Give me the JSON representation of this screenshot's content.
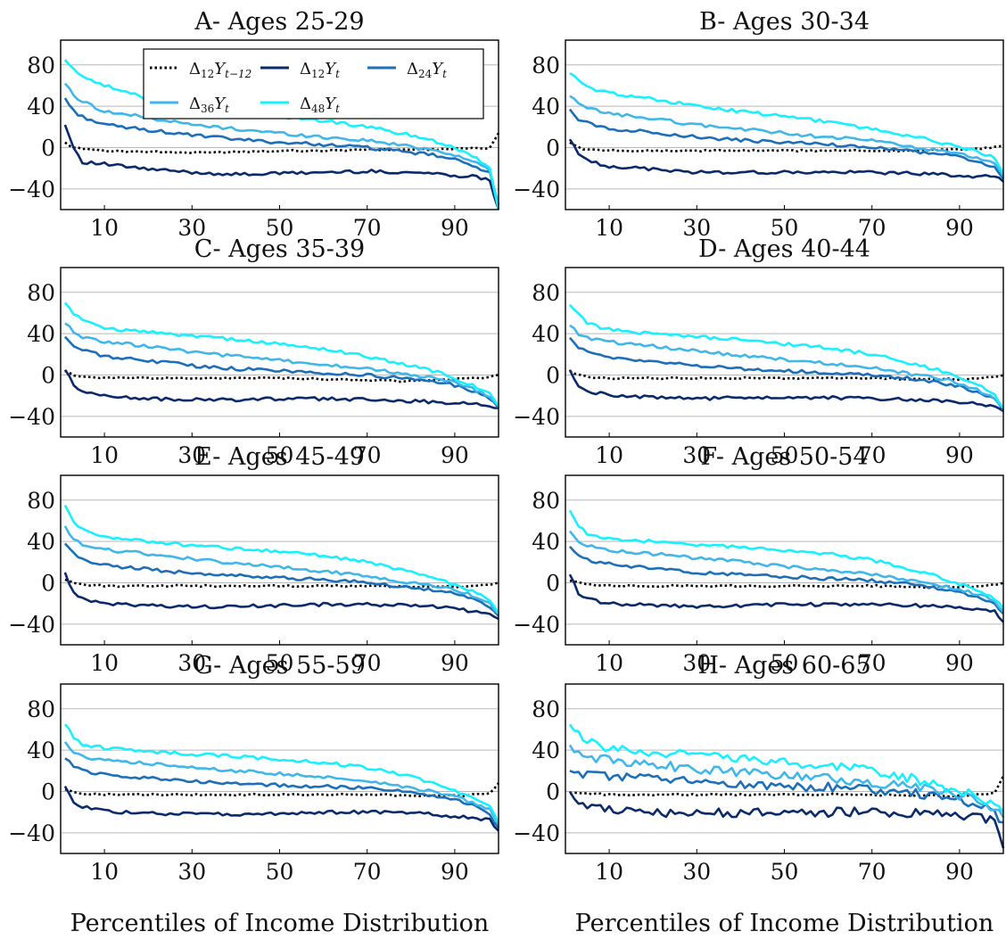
{
  "chart_data": {
    "type": "line",
    "x_ticks": [
      10,
      30,
      50,
      70,
      90
    ],
    "y_ticks": [
      -40,
      0,
      40,
      80
    ],
    "xlim": [
      0,
      100
    ],
    "ylim": [
      -60,
      104
    ],
    "grid": "horizontal",
    "legend": {
      "placement": "top (panel A)",
      "entries": [
        {
          "series": "d12lag",
          "label": "Δ12Yt−12",
          "base": "Δ",
          "sub": "12",
          "var": "Y",
          "var_sub": "t−12"
        },
        {
          "series": "d12",
          "label": "Δ12Yt",
          "base": "Δ",
          "sub": "12",
          "var": "Y",
          "var_sub": "t"
        },
        {
          "series": "d24",
          "label": "Δ24Yt",
          "base": "Δ",
          "sub": "24",
          "var": "Y",
          "var_sub": "t"
        },
        {
          "series": "d36",
          "label": "Δ36Yt",
          "base": "Δ",
          "sub": "36",
          "var": "Y",
          "var_sub": "t"
        },
        {
          "series": "d48",
          "label": "Δ48Yt",
          "base": "Δ",
          "sub": "48",
          "var": "Y",
          "var_sub": "t"
        }
      ]
    },
    "series_styles": {
      "d12lag": {
        "color": "#000000",
        "dashed": true
      },
      "d12": {
        "color": "#0b2a6b",
        "dashed": false
      },
      "d24": {
        "color": "#1c6fb8",
        "dashed": false
      },
      "d36": {
        "color": "#3fb7ea",
        "dashed": false
      },
      "d48": {
        "color": "#18f0ff",
        "dashed": false
      }
    },
    "x": [
      1,
      3,
      5,
      10,
      20,
      30,
      40,
      50,
      60,
      70,
      80,
      85,
      90,
      95,
      98,
      100
    ],
    "xlabel": "Percentiles of Income Distribution",
    "panels": [
      {
        "id": "A",
        "title": "A- Ages 25-29",
        "series": {
          "d48": [
            85,
            75,
            70,
            60,
            47,
            40,
            35,
            30,
            26,
            20,
            12,
            7,
            0,
            -10,
            -20,
            -60
          ],
          "d36": [
            62,
            50,
            45,
            35,
            29,
            22,
            18,
            14,
            10,
            7,
            1,
            -2,
            -7,
            -15,
            -22,
            -56
          ],
          "d24": [
            48,
            35,
            30,
            22,
            17,
            12,
            8,
            5,
            3,
            0,
            -5,
            -7,
            -12,
            -18,
            -25,
            -55
          ],
          "d12": [
            22,
            0,
            -14,
            -16,
            -21,
            -24,
            -26,
            -25,
            -24,
            -23,
            -24,
            -25,
            -27,
            -28,
            -32,
            -60
          ],
          "d12lag": [
            5,
            0,
            -1,
            -3,
            -4,
            -5,
            -4,
            -3,
            -3,
            -2,
            -2,
            -2,
            -1,
            -1,
            0,
            14
          ]
        }
      },
      {
        "id": "B",
        "title": "B- Ages 30-34",
        "series": {
          "d48": [
            72,
            65,
            58,
            53,
            47,
            40,
            35,
            30,
            25,
            18,
            10,
            6,
            0,
            -5,
            -10,
            -25
          ],
          "d36": [
            50,
            42,
            38,
            33,
            28,
            22,
            18,
            14,
            10,
            7,
            0,
            -3,
            -6,
            -12,
            -16,
            -28
          ],
          "d24": [
            37,
            27,
            24,
            18,
            15,
            10,
            7,
            5,
            3,
            0,
            -4,
            -6,
            -9,
            -15,
            -19,
            -30
          ],
          "d12": [
            8,
            -5,
            -13,
            -18,
            -21,
            -24,
            -24,
            -24,
            -24,
            -24,
            -25,
            -26,
            -27,
            -28,
            -28,
            -33
          ],
          "d12lag": [
            5,
            0,
            -2,
            -3,
            -3,
            -3,
            -3,
            -3,
            -3,
            -3,
            -3,
            -2,
            -2,
            -1,
            0,
            2
          ]
        }
      },
      {
        "id": "C",
        "title": "C- Ages 35-39",
        "series": {
          "d48": [
            70,
            60,
            52,
            45,
            42,
            38,
            34,
            30,
            25,
            18,
            9,
            4,
            -3,
            -12,
            -18,
            -30
          ],
          "d36": [
            50,
            42,
            37,
            32,
            28,
            22,
            18,
            14,
            10,
            6,
            0,
            -3,
            -7,
            -15,
            -20,
            -30
          ],
          "d24": [
            37,
            28,
            24,
            18,
            14,
            9,
            6,
            4,
            2,
            0,
            -4,
            -6,
            -10,
            -17,
            -22,
            -32
          ],
          "d12": [
            5,
            -10,
            -16,
            -20,
            -23,
            -24,
            -24,
            -23,
            -23,
            -24,
            -25,
            -26,
            -27,
            -28,
            -29,
            -32
          ],
          "d12lag": [
            4,
            0,
            -2,
            -3,
            -3,
            -3,
            -3,
            -3,
            -4,
            -5,
            -6,
            -5,
            -4,
            -3,
            -2,
            0
          ]
        }
      },
      {
        "id": "D",
        "title": "D- Ages 40-44",
        "series": {
          "d48": [
            68,
            58,
            50,
            44,
            40,
            37,
            34,
            30,
            26,
            20,
            10,
            5,
            -3,
            -12,
            -20,
            -32
          ],
          "d36": [
            48,
            40,
            36,
            32,
            28,
            23,
            19,
            15,
            11,
            7,
            0,
            -3,
            -8,
            -16,
            -22,
            -32
          ],
          "d24": [
            36,
            27,
            22,
            17,
            13,
            9,
            6,
            4,
            2,
            0,
            -4,
            -7,
            -11,
            -18,
            -24,
            -34
          ],
          "d12": [
            5,
            -10,
            -16,
            -19,
            -22,
            -23,
            -22,
            -22,
            -22,
            -23,
            -24,
            -25,
            -26,
            -28,
            -30,
            -35
          ],
          "d12lag": [
            4,
            0,
            -2,
            -3,
            -3,
            -3,
            -3,
            -3,
            -3,
            -3,
            -4,
            -4,
            -4,
            -3,
            -2,
            0
          ]
        }
      },
      {
        "id": "E",
        "title": "E- Ages 45-49",
        "series": {
          "d48": [
            75,
            60,
            52,
            44,
            40,
            36,
            33,
            30,
            26,
            20,
            10,
            5,
            -2,
            -10,
            -18,
            -30
          ],
          "d36": [
            55,
            42,
            36,
            32,
            28,
            23,
            19,
            15,
            11,
            7,
            0,
            -3,
            -7,
            -14,
            -20,
            -30
          ],
          "d24": [
            38,
            28,
            22,
            17,
            13,
            9,
            7,
            5,
            3,
            0,
            -4,
            -7,
            -10,
            -17,
            -23,
            -32
          ],
          "d12": [
            10,
            -10,
            -15,
            -20,
            -22,
            -23,
            -23,
            -22,
            -21,
            -21,
            -22,
            -23,
            -25,
            -28,
            -30,
            -35
          ],
          "d12lag": [
            3,
            0,
            -2,
            -3,
            -3,
            -3,
            -3,
            -3,
            -3,
            -3,
            -4,
            -4,
            -4,
            -3,
            -2,
            0
          ]
        }
      },
      {
        "id": "F",
        "title": "F- Ages 50-54",
        "series": {
          "d48": [
            70,
            55,
            48,
            43,
            40,
            37,
            34,
            31,
            28,
            22,
            12,
            6,
            -1,
            -8,
            -15,
            -25
          ],
          "d36": [
            50,
            40,
            36,
            31,
            28,
            24,
            20,
            16,
            12,
            8,
            2,
            -2,
            -6,
            -12,
            -18,
            -28
          ],
          "d24": [
            35,
            26,
            22,
            18,
            14,
            10,
            8,
            6,
            4,
            2,
            -2,
            -5,
            -9,
            -15,
            -21,
            -30
          ],
          "d12": [
            8,
            -10,
            -16,
            -20,
            -22,
            -23,
            -22,
            -21,
            -21,
            -21,
            -22,
            -23,
            -24,
            -26,
            -28,
            -38
          ],
          "d12lag": [
            2,
            0,
            -2,
            -3,
            -3,
            -3,
            -3,
            -3,
            -3,
            -3,
            -4,
            -4,
            -4,
            -3,
            -2,
            0
          ]
        }
      },
      {
        "id": "G",
        "title": "G- Ages 55-59",
        "series": {
          "d48": [
            65,
            52,
            46,
            42,
            39,
            36,
            34,
            31,
            28,
            23,
            15,
            8,
            0,
            -8,
            -15,
            -30
          ],
          "d36": [
            48,
            38,
            34,
            30,
            27,
            23,
            20,
            17,
            14,
            10,
            4,
            0,
            -5,
            -12,
            -18,
            -32
          ],
          "d24": [
            32,
            24,
            20,
            16,
            13,
            10,
            8,
            6,
            5,
            3,
            -1,
            -4,
            -8,
            -15,
            -22,
            -35
          ],
          "d12": [
            5,
            -10,
            -15,
            -19,
            -21,
            -22,
            -22,
            -21,
            -20,
            -20,
            -21,
            -22,
            -24,
            -26,
            -28,
            -38
          ],
          "d12lag": [
            2,
            0,
            -2,
            -3,
            -3,
            -3,
            -3,
            -3,
            -3,
            -3,
            -4,
            -4,
            -4,
            -3,
            -2,
            8
          ]
        }
      },
      {
        "id": "H",
        "title": "H- Ages 60-65",
        "series": {
          "d48": [
            65,
            55,
            48,
            42,
            38,
            35,
            32,
            28,
            25,
            20,
            12,
            6,
            0,
            -6,
            -12,
            -20
          ],
          "d36": [
            45,
            38,
            34,
            30,
            26,
            22,
            19,
            16,
            13,
            9,
            4,
            0,
            -4,
            -10,
            -16,
            -25
          ],
          "d24": [
            20,
            18,
            17,
            15,
            12,
            9,
            7,
            5,
            4,
            2,
            -2,
            -5,
            -8,
            -14,
            -20,
            -30
          ],
          "d12": [
            0,
            -12,
            -15,
            -18,
            -20,
            -21,
            -21,
            -20,
            -20,
            -20,
            -21,
            -22,
            -24,
            -26,
            -28,
            -55
          ],
          "d12lag": [
            -2,
            -1,
            -2,
            -3,
            -3,
            -3,
            -3,
            -3,
            -3,
            -3,
            -4,
            -4,
            -4,
            -3,
            -2,
            15
          ]
        }
      }
    ]
  }
}
